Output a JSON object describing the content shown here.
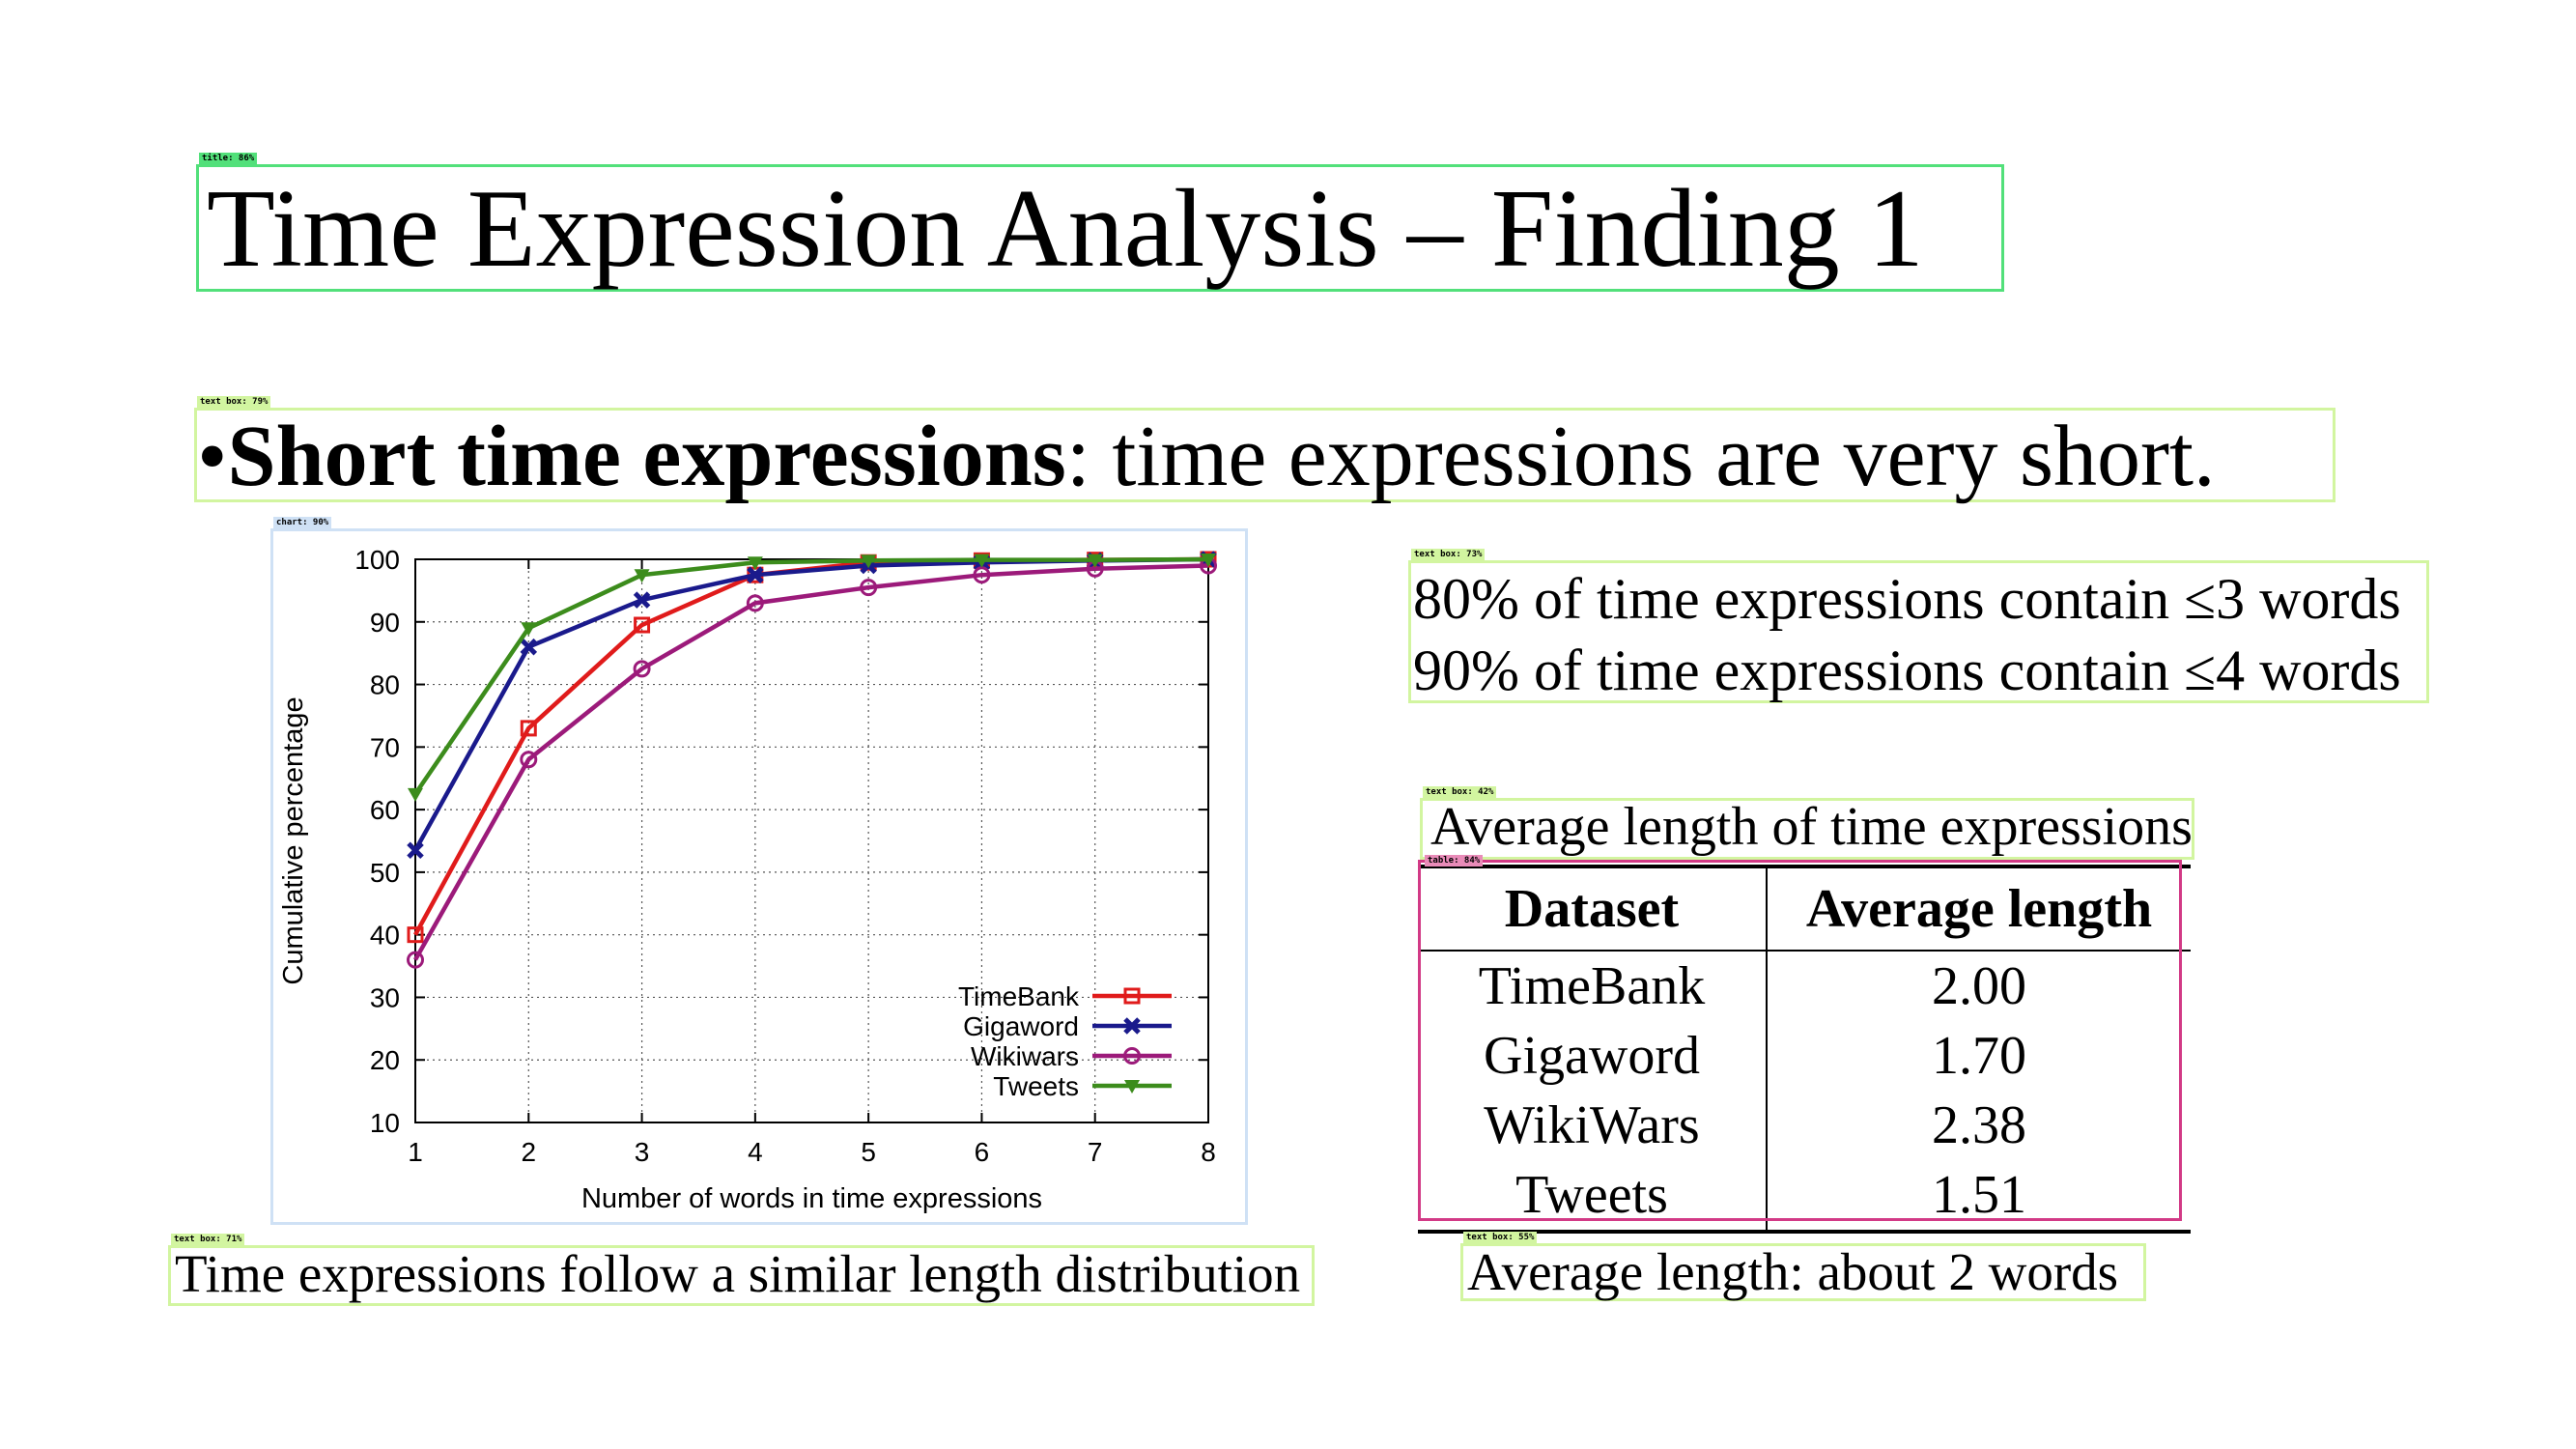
{
  "slide": {
    "title": "Time Expression Analysis – Finding 1",
    "bullet": {
      "glyph": "•",
      "bold": "Short time expressions",
      "rest": ": time expressions are very short."
    },
    "stats": [
      "80% of time expressions contain ≤3 words",
      "90% of time expressions contain ≤4 words"
    ],
    "table_caption": "Average length of time expressions",
    "table": {
      "headers": [
        "Dataset",
        "Average length"
      ],
      "rows": [
        [
          "TimeBank",
          "2.00"
        ],
        [
          "Gigaword",
          "1.70"
        ],
        [
          "WikiWars",
          "2.38"
        ],
        [
          "Tweets",
          "1.51"
        ]
      ]
    },
    "chart_caption": "Time expressions follow a similar length distribution",
    "avg_note": "Average length:  about 2 words"
  },
  "annotations": {
    "title": "title: 86%",
    "bullet": "text box: 79%",
    "chart": "chart: 90%",
    "stats": "text box: 73%",
    "table_caption": "text box: 42%",
    "table": "table: 84%",
    "chart_caption": "text box: 71%",
    "avg_note": "text box: 55%"
  },
  "chart_data": {
    "type": "line",
    "xlabel": "Number of words in time expressions",
    "ylabel": "Cumulative percentage",
    "x": [
      1,
      2,
      3,
      4,
      5,
      6,
      7,
      8
    ],
    "xlim": [
      1,
      8
    ],
    "ylim": [
      10,
      100
    ],
    "yticks": [
      10,
      20,
      30,
      40,
      50,
      60,
      70,
      80,
      90,
      100
    ],
    "grid": true,
    "legend_position": "bottom-right",
    "series": [
      {
        "name": "TimeBank",
        "color": "#e01b1b",
        "marker": "square",
        "values": [
          40,
          73,
          89.5,
          97.5,
          99.5,
          99.8,
          99.9,
          100
        ]
      },
      {
        "name": "Gigaword",
        "color": "#1a1a8c",
        "marker": "x",
        "values": [
          53.5,
          86,
          93.5,
          97.5,
          99,
          99.5,
          99.8,
          100
        ]
      },
      {
        "name": "Wikiwars",
        "color": "#9c1a7a",
        "marker": "circle",
        "values": [
          36,
          68,
          82.5,
          93,
          95.5,
          97.5,
          98.5,
          99
        ]
      },
      {
        "name": "Tweets",
        "color": "#3c8c1c",
        "marker": "triangle",
        "values": [
          62.5,
          89,
          97.5,
          99.5,
          99.8,
          99.9,
          99.9,
          100
        ]
      }
    ]
  }
}
